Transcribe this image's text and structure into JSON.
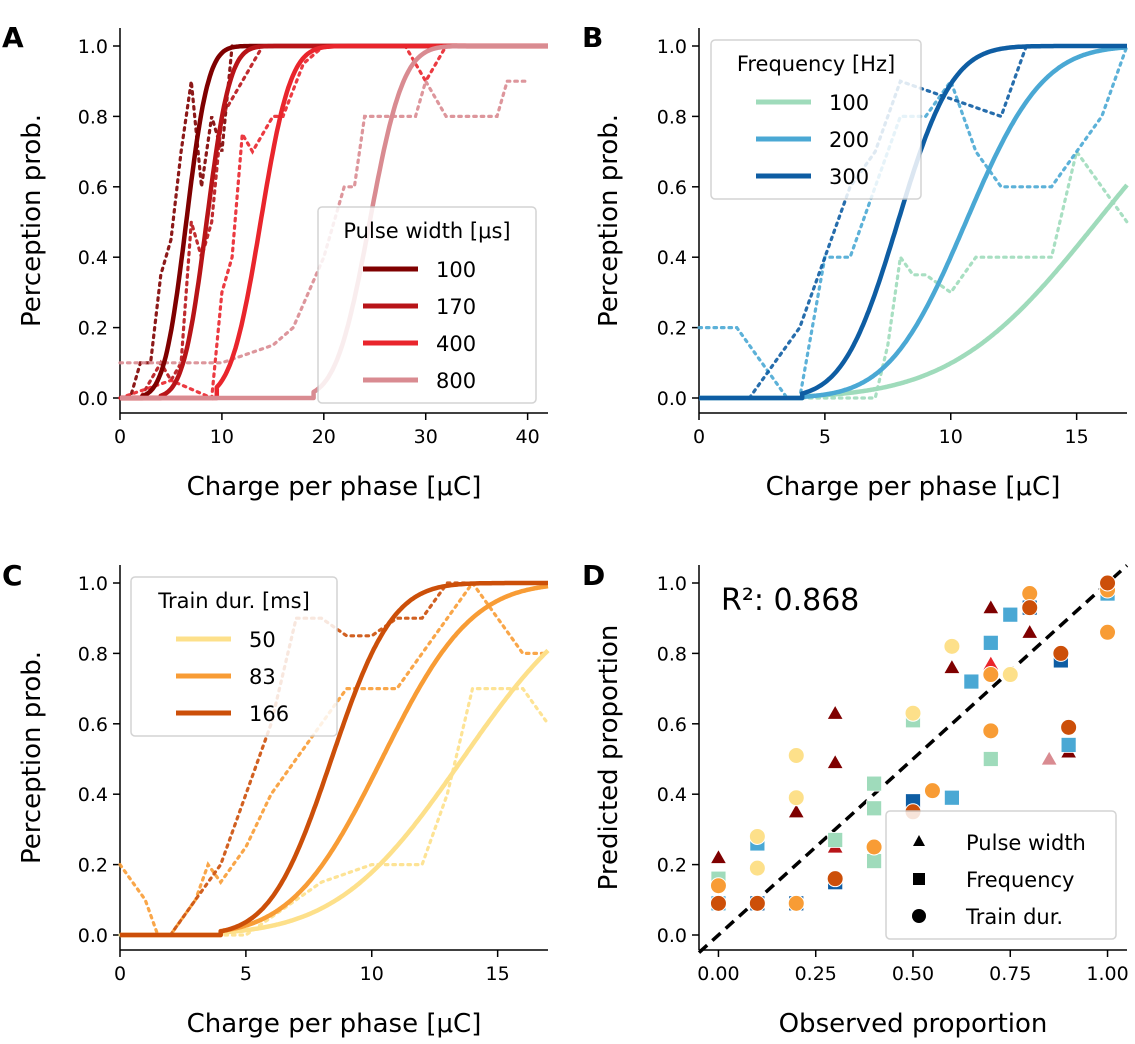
{
  "colors": {
    "pw": [
      "#7f0000",
      "#b81418",
      "#e9252c",
      "#d98b91"
    ],
    "freq": [
      "#9fdbbb",
      "#4aa8d4",
      "#0e5da3"
    ],
    "dur": [
      "#fde08a",
      "#f89c35",
      "#cc4f09"
    ]
  },
  "chart_data": [
    {
      "panel": "A",
      "type": "line",
      "xlabel": "Charge per phase [μC]",
      "ylabel": "Perception prob.",
      "xlim": [
        0,
        42
      ],
      "ylim": [
        -0.05,
        1.05
      ],
      "xticks": [
        "0",
        "10",
        "20",
        "30",
        "40"
      ],
      "yticks": [
        "0.0",
        "0.2",
        "0.4",
        "0.6",
        "0.8",
        "1.0"
      ],
      "legend": {
        "title": "Pulse width [μs]",
        "placement": "center right"
      },
      "series": [
        {
          "name": "100",
          "threshold": 2.2,
          "mu": 6.5,
          "sigma": 1.7,
          "observed": [
            [
              0,
              0
            ],
            [
              1,
              0
            ],
            [
              2,
              0.1
            ],
            [
              3,
              0.1
            ],
            [
              4,
              0.35
            ],
            [
              5,
              0.45
            ],
            [
              6,
              0.7
            ],
            [
              7,
              0.9
            ],
            [
              8,
              0.6
            ],
            [
              9,
              0.8
            ],
            [
              10,
              0.7
            ],
            [
              11,
              1
            ]
          ]
        },
        {
          "name": "170",
          "threshold": 4.0,
          "mu": 8.5,
          "sigma": 1.8,
          "observed": [
            [
              0,
              0
            ],
            [
              2,
              0
            ],
            [
              4,
              0.1
            ],
            [
              5,
              0.05
            ],
            [
              6,
              0.1
            ],
            [
              7,
              0.5
            ],
            [
              8,
              0.4
            ],
            [
              9,
              0.5
            ],
            [
              10,
              0.8
            ],
            [
              12,
              0.9
            ],
            [
              14,
              1
            ],
            [
              30,
              1
            ]
          ]
        },
        {
          "name": "400",
          "threshold": 9.5,
          "mu": 13.8,
          "sigma": 2.3,
          "observed": [
            [
              0,
              0
            ],
            [
              5,
              0.05
            ],
            [
              9,
              0
            ],
            [
              10,
              0.3
            ],
            [
              11,
              0.4
            ],
            [
              12,
              0.75
            ],
            [
              13,
              0.7
            ],
            [
              15,
              0.8
            ],
            [
              16,
              0.8
            ],
            [
              18,
              0.95
            ],
            [
              20,
              1
            ],
            [
              24,
              1
            ],
            [
              26,
              1
            ],
            [
              28,
              1
            ],
            [
              30,
              0.9
            ],
            [
              32,
              1
            ],
            [
              40,
              1
            ]
          ]
        },
        {
          "name": "800",
          "threshold": 19.0,
          "mu": 24.5,
          "sigma": 2.6,
          "observed": [
            [
              0,
              0.1
            ],
            [
              10,
              0.1
            ],
            [
              15,
              0.15
            ],
            [
              17,
              0.2
            ],
            [
              20,
              0.4
            ],
            [
              22,
              0.6
            ],
            [
              23,
              0.6
            ],
            [
              24,
              0.8
            ],
            [
              26,
              0.8
            ],
            [
              29,
              0.8
            ],
            [
              30,
              0.9
            ],
            [
              32,
              0.8
            ],
            [
              37,
              0.8
            ],
            [
              38,
              0.9
            ],
            [
              40,
              0.9
            ]
          ]
        }
      ]
    },
    {
      "panel": "B",
      "type": "line",
      "xlabel": "Charge per phase [μC]",
      "ylabel": "Perception prob.",
      "xlim": [
        0,
        17
      ],
      "ylim": [
        -0.05,
        1.05
      ],
      "xticks": [
        "0",
        "5",
        "10",
        "15"
      ],
      "yticks": [
        "0.0",
        "0.2",
        "0.4",
        "0.6",
        "0.8",
        "1.0"
      ],
      "legend": {
        "title": "Frequency [Hz]",
        "placement": "top left"
      },
      "series": [
        {
          "name": "100",
          "threshold": 4.1,
          "mu": 15.8,
          "sigma": 4.5,
          "observed": [
            [
              2,
              0
            ],
            [
              6,
              0
            ],
            [
              7,
              0
            ],
            [
              7.5,
              0.15
            ],
            [
              8,
              0.4
            ],
            [
              8.5,
              0.35
            ],
            [
              9,
              0.35
            ],
            [
              10,
              0.3
            ],
            [
              11,
              0.4
            ],
            [
              13,
              0.4
            ],
            [
              14,
              0.4
            ],
            [
              15,
              0.7
            ],
            [
              16,
              0.6
            ],
            [
              17,
              0.5
            ]
          ]
        },
        {
          "name": "200",
          "threshold": 4.1,
          "mu": 10.6,
          "sigma": 2.4,
          "observed": [
            [
              0,
              0.2
            ],
            [
              1.5,
              0.2
            ],
            [
              2.5,
              0.1
            ],
            [
              3.5,
              0
            ],
            [
              4,
              0
            ],
            [
              5,
              0.4
            ],
            [
              6,
              0.4
            ],
            [
              7,
              0.6
            ],
            [
              8,
              0.8
            ],
            [
              9,
              0.8
            ],
            [
              10,
              0.9
            ],
            [
              11,
              0.7
            ],
            [
              12,
              0.6
            ],
            [
              14,
              0.6
            ],
            [
              16,
              0.8
            ],
            [
              17,
              1
            ]
          ]
        },
        {
          "name": "300",
          "threshold": 4.1,
          "mu": 7.9,
          "sigma": 1.7,
          "observed": [
            [
              2,
              0
            ],
            [
              3,
              0.1
            ],
            [
              4,
              0.2
            ],
            [
              5,
              0.4
            ],
            [
              6,
              0.6
            ],
            [
              7,
              0.7
            ],
            [
              8,
              0.9
            ],
            [
              10,
              0.85
            ],
            [
              12,
              0.8
            ],
            [
              13,
              1
            ],
            [
              16,
              1
            ]
          ]
        }
      ]
    },
    {
      "panel": "C",
      "type": "line",
      "xlabel": "Charge per phase [μC]",
      "ylabel": "Perception prob.",
      "xlim": [
        0,
        17
      ],
      "ylim": [
        -0.05,
        1.05
      ],
      "xticks": [
        "0",
        "5",
        "10",
        "15"
      ],
      "yticks": [
        "0.0",
        "0.2",
        "0.4",
        "0.6",
        "0.8",
        "1.0"
      ],
      "legend": {
        "title": "Train dur. [ms]",
        "placement": "top left"
      },
      "series": [
        {
          "name": "50",
          "threshold": 4.0,
          "mu": 13.6,
          "sigma": 3.9,
          "observed": [
            [
              0,
              0
            ],
            [
              3,
              0
            ],
            [
              4,
              0
            ],
            [
              5,
              0
            ],
            [
              6,
              0.05
            ],
            [
              7,
              0.1
            ],
            [
              8,
              0.15
            ],
            [
              10,
              0.2
            ],
            [
              12,
              0.2
            ],
            [
              13,
              0.4
            ],
            [
              14,
              0.7
            ],
            [
              16,
              0.7
            ],
            [
              17,
              0.6
            ]
          ]
        },
        {
          "name": "83",
          "threshold": 4.0,
          "mu": 10.4,
          "sigma": 2.8,
          "observed": [
            [
              0,
              0.2
            ],
            [
              1,
              0.1
            ],
            [
              1.5,
              0
            ],
            [
              2,
              0
            ],
            [
              3,
              0.1
            ],
            [
              3.5,
              0.2
            ],
            [
              4,
              0.15
            ],
            [
              5,
              0.25
            ],
            [
              6,
              0.4
            ],
            [
              7,
              0.5
            ],
            [
              8,
              0.6
            ],
            [
              9,
              0.7
            ],
            [
              10,
              0.7
            ],
            [
              11,
              0.7
            ],
            [
              12,
              0.8
            ],
            [
              14,
              1
            ],
            [
              16,
              0.8
            ],
            [
              17,
              0.8
            ]
          ]
        },
        {
          "name": "166",
          "threshold": 4.0,
          "mu": 8.4,
          "sigma": 1.9,
          "observed": [
            [
              2,
              0
            ],
            [
              3,
              0.1
            ],
            [
              4,
              0.2
            ],
            [
              5,
              0.4
            ],
            [
              6,
              0.6
            ],
            [
              7,
              0.9
            ],
            [
              8,
              0.9
            ],
            [
              9,
              0.85
            ],
            [
              10,
              0.85
            ],
            [
              11,
              0.9
            ],
            [
              12,
              0.9
            ],
            [
              13,
              1
            ],
            [
              15,
              1
            ]
          ]
        }
      ]
    },
    {
      "panel": "D",
      "type": "scatter",
      "xlabel": "Observed proportion",
      "ylabel": "Predicted proportion",
      "xlim": [
        -0.05,
        1.05
      ],
      "ylim": [
        -0.05,
        1.05
      ],
      "xticks": [
        "0.00",
        "0.25",
        "0.50",
        "0.75",
        "1.00"
      ],
      "yticks": [
        "0.0",
        "0.2",
        "0.4",
        "0.6",
        "0.8",
        "1.0"
      ],
      "annotation": "R²: 0.868",
      "diagonal": true,
      "legend": {
        "placement": "bottom right",
        "entries": [
          "Pulse width",
          "Frequency",
          "Train dur."
        ]
      },
      "series": [
        {
          "name": "Pulse width",
          "marker": "triangle",
          "points": [
            [
              0,
              0.22,
              0
            ],
            [
              0.2,
              0.35,
              0
            ],
            [
              0.3,
              0.63,
              0
            ],
            [
              0.3,
              0.49,
              0
            ],
            [
              0.7,
              0.93,
              0
            ],
            [
              0.6,
              0.76,
              0
            ],
            [
              0.8,
              0.86,
              0
            ],
            [
              0.9,
              0.52,
              0
            ],
            [
              0.3,
              0.25,
              1
            ],
            [
              0.7,
              0.77,
              2
            ],
            [
              0.8,
              0.95,
              1
            ],
            [
              1,
              1,
              3
            ],
            [
              0.85,
              0.5,
              3
            ],
            [
              0.88,
              0.79,
              2
            ]
          ]
        },
        {
          "name": "Frequency",
          "marker": "square",
          "points": [
            [
              0,
              0.16,
              0
            ],
            [
              0,
              0.09,
              1
            ],
            [
              0.1,
              0.26,
              1
            ],
            [
              0.1,
              0.09,
              2
            ],
            [
              0.2,
              0.09,
              2
            ],
            [
              0.3,
              0.27,
              0
            ],
            [
              0.3,
              0.15,
              2
            ],
            [
              0.4,
              0.43,
              0
            ],
            [
              0.4,
              0.36,
              0
            ],
            [
              0.4,
              0.21,
              0
            ],
            [
              0.5,
              0.61,
              0
            ],
            [
              0.5,
              0.38,
              2
            ],
            [
              0.6,
              0.39,
              1
            ],
            [
              0.65,
              0.72,
              1
            ],
            [
              0.7,
              0.5,
              0
            ],
            [
              0.7,
              0.83,
              1
            ],
            [
              0.75,
              0.91,
              1
            ],
            [
              0.8,
              0.93,
              2
            ],
            [
              0.88,
              0.78,
              2
            ],
            [
              0.9,
              0.54,
              1
            ],
            [
              1,
              0.97,
              1
            ]
          ]
        },
        {
          "name": "Train dur.",
          "marker": "circle",
          "points": [
            [
              0,
              0.14,
              1
            ],
            [
              0,
              0.09,
              2
            ],
            [
              0.1,
              0.28,
              0
            ],
            [
              0.1,
              0.19,
              0
            ],
            [
              0.1,
              0.09,
              2
            ],
            [
              0.2,
              0.51,
              0
            ],
            [
              0.2,
              0.39,
              0
            ],
            [
              0.2,
              0.09,
              1
            ],
            [
              0.3,
              0.16,
              2
            ],
            [
              0.4,
              0.25,
              1
            ],
            [
              0.5,
              0.63,
              0
            ],
            [
              0.5,
              0.35,
              2
            ],
            [
              0.55,
              0.41,
              1
            ],
            [
              0.6,
              0.82,
              0
            ],
            [
              0.7,
              0.58,
              1
            ],
            [
              0.7,
              0.74,
              1
            ],
            [
              0.75,
              0.74,
              0
            ],
            [
              0.8,
              0.97,
              1
            ],
            [
              0.8,
              0.93,
              2
            ],
            [
              0.88,
              0.8,
              2
            ],
            [
              0.9,
              0.59,
              2
            ],
            [
              1,
              0.86,
              1
            ],
            [
              1,
              0.98,
              1
            ],
            [
              1,
              1,
              2
            ]
          ]
        }
      ]
    }
  ]
}
